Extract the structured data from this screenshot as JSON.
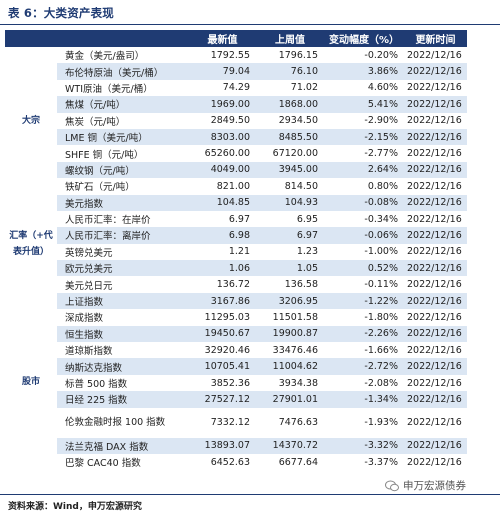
{
  "title": "表 6：大类资产表现",
  "headers": [
    "最新值",
    "上周值",
    "变动幅度（%）",
    "更新时间"
  ],
  "groups": [
    {
      "category": "大宗",
      "rows": [
        {
          "name": "黄金（美元/盎司）",
          "latest": "1792.55",
          "prev": "1796.15",
          "change": "-0.20%",
          "date": "2022/12/16"
        },
        {
          "name": "布伦特原油（美元/桶）",
          "latest": "79.04",
          "prev": "76.10",
          "change": "3.86%",
          "date": "2022/12/16"
        },
        {
          "name": "WTI原油（美元/桶）",
          "latest": "74.29",
          "prev": "71.02",
          "change": "4.60%",
          "date": "2022/12/16"
        },
        {
          "name": "焦煤（元/吨）",
          "latest": "1969.00",
          "prev": "1868.00",
          "change": "5.41%",
          "date": "2022/12/16"
        },
        {
          "name": "焦炭（元/吨）",
          "latest": "2849.50",
          "prev": "2934.50",
          "change": "-2.90%",
          "date": "2022/12/16"
        },
        {
          "name": "LME 铜（美元/吨）",
          "latest": "8303.00",
          "prev": "8485.50",
          "change": "-2.15%",
          "date": "2022/12/16"
        },
        {
          "name": "SHFE 铜（元/吨）",
          "latest": "65260.00",
          "prev": "67120.00",
          "change": "-2.77%",
          "date": "2022/12/16"
        },
        {
          "name": "螺纹钢（元/吨）",
          "latest": "4049.00",
          "prev": "3945.00",
          "change": "2.64%",
          "date": "2022/12/16"
        },
        {
          "name": "铁矿石（元/吨）",
          "latest": "821.00",
          "prev": "814.50",
          "change": "0.80%",
          "date": "2022/12/16"
        }
      ]
    },
    {
      "category": "汇率（+代表升值）",
      "rows": [
        {
          "name": "美元指数",
          "latest": "104.85",
          "prev": "104.93",
          "change": "-0.08%",
          "date": "2022/12/16"
        },
        {
          "name": "人民币汇率：在岸价",
          "latest": "6.97",
          "prev": "6.95",
          "change": "-0.34%",
          "date": "2022/12/16"
        },
        {
          "name": "人民币汇率：离岸价",
          "latest": "6.98",
          "prev": "6.97",
          "change": "-0.06%",
          "date": "2022/12/16"
        },
        {
          "name": "英镑兑美元",
          "latest": "1.21",
          "prev": "1.23",
          "change": "-1.00%",
          "date": "2022/12/16"
        },
        {
          "name": "欧元兑美元",
          "latest": "1.06",
          "prev": "1.05",
          "change": "0.52%",
          "date": "2022/12/16"
        },
        {
          "name": "美元兑日元",
          "latest": "136.72",
          "prev": "136.58",
          "change": "-0.11%",
          "date": "2022/12/16"
        }
      ]
    },
    {
      "category": "股市",
      "rows": [
        {
          "name": "上证指数",
          "latest": "3167.86",
          "prev": "3206.95",
          "change": "-1.22%",
          "date": "2022/12/16"
        },
        {
          "name": "深成指数",
          "latest": "11295.03",
          "prev": "11501.58",
          "change": "-1.80%",
          "date": "2022/12/16"
        },
        {
          "name": "恒生指数",
          "latest": "19450.67",
          "prev": "19900.87",
          "change": "-2.26%",
          "date": "2022/12/16"
        },
        {
          "name": "道琼斯指数",
          "latest": "32920.46",
          "prev": "33476.46",
          "change": "-1.66%",
          "date": "2022/12/16"
        },
        {
          "name": "纳斯达克指数",
          "latest": "10705.41",
          "prev": "11004.62",
          "change": "-2.72%",
          "date": "2022/12/16"
        },
        {
          "name": "标普 500 指数",
          "latest": "3852.36",
          "prev": "3934.38",
          "change": "-2.08%",
          "date": "2022/12/16"
        },
        {
          "name": "日经 225 指数",
          "latest": "27527.12",
          "prev": "27901.01",
          "change": "-1.34%",
          "date": "2022/12/16"
        },
        {
          "name": "伦敦金融时报 100 指数",
          "latest": "7332.12",
          "prev": "7476.63",
          "change": "-1.93%",
          "date": "2022/12/16"
        },
        {
          "name": "法兰克福 DAX 指数",
          "latest": "13893.07",
          "prev": "14370.72",
          "change": "-3.32%",
          "date": "2022/12/16"
        },
        {
          "name": "巴黎 CAC40 指数",
          "latest": "6452.63",
          "prev": "6677.64",
          "change": "-3.37%",
          "date": "2022/12/16"
        }
      ]
    }
  ],
  "footer": "资料来源：Wind，申万宏源研究",
  "watermark": "申万宏源债券",
  "colors": {
    "header_bg": "#1f3b73",
    "alt_row": "#dbe6f3"
  }
}
